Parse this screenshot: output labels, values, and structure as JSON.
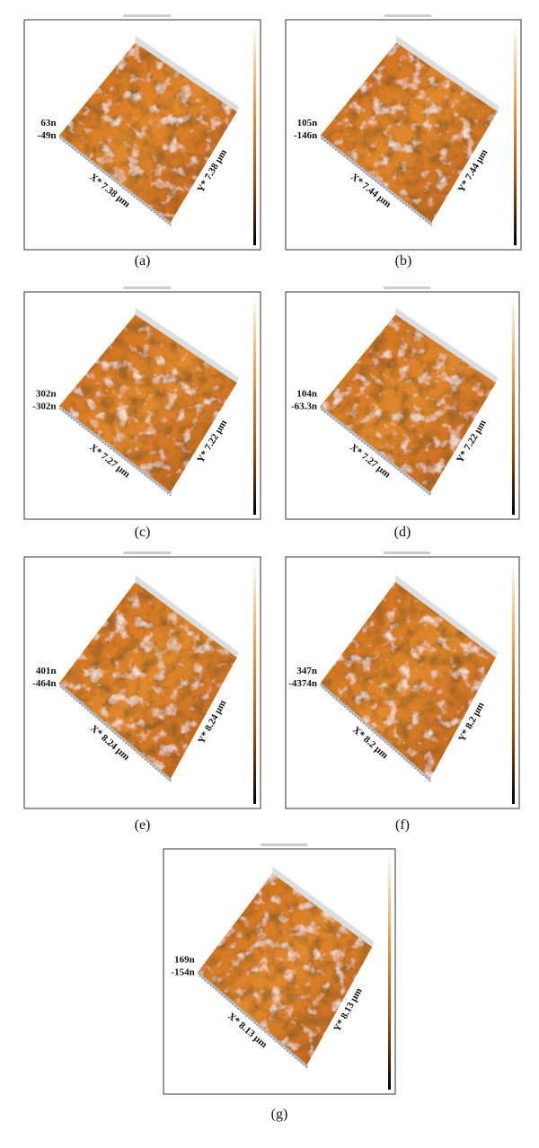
{
  "panels": [
    {
      "label": "(a)",
      "z_max": "63n",
      "z_min": "-49n",
      "x_axis": "X* 7.38 μm",
      "y_axis": "Y* 7.38 μm"
    },
    {
      "label": "(b)",
      "z_max": "105n",
      "z_min": "-146n",
      "x_axis": "X* 7.44 μm",
      "y_axis": "Y* 7.44 μm"
    },
    {
      "label": "(c)",
      "z_max": "302n",
      "z_min": "-302n",
      "x_axis": "X* 7.27 μm",
      "y_axis": "Y* 7.22 μm"
    },
    {
      "label": "(d)",
      "z_max": "104n",
      "z_min": "-63.3n",
      "x_axis": "X* 7.27 μm",
      "y_axis": "Y* 7.22 μm"
    },
    {
      "label": "(e)",
      "z_max": "401n",
      "z_min": "-464n",
      "x_axis": "X* 8.24 μm",
      "y_axis": "Y* 8.24 μm"
    },
    {
      "label": "(f)",
      "z_max": "347n",
      "z_min": "-4374n",
      "x_axis": "X* 8.2 μm",
      "y_axis": "Y* 8.2 μm"
    },
    {
      "label": "(g)",
      "z_max": "169n",
      "z_min": "-154n",
      "x_axis": "X* 8.13 μm",
      "y_axis": "Y* 8.13 μm"
    }
  ]
}
